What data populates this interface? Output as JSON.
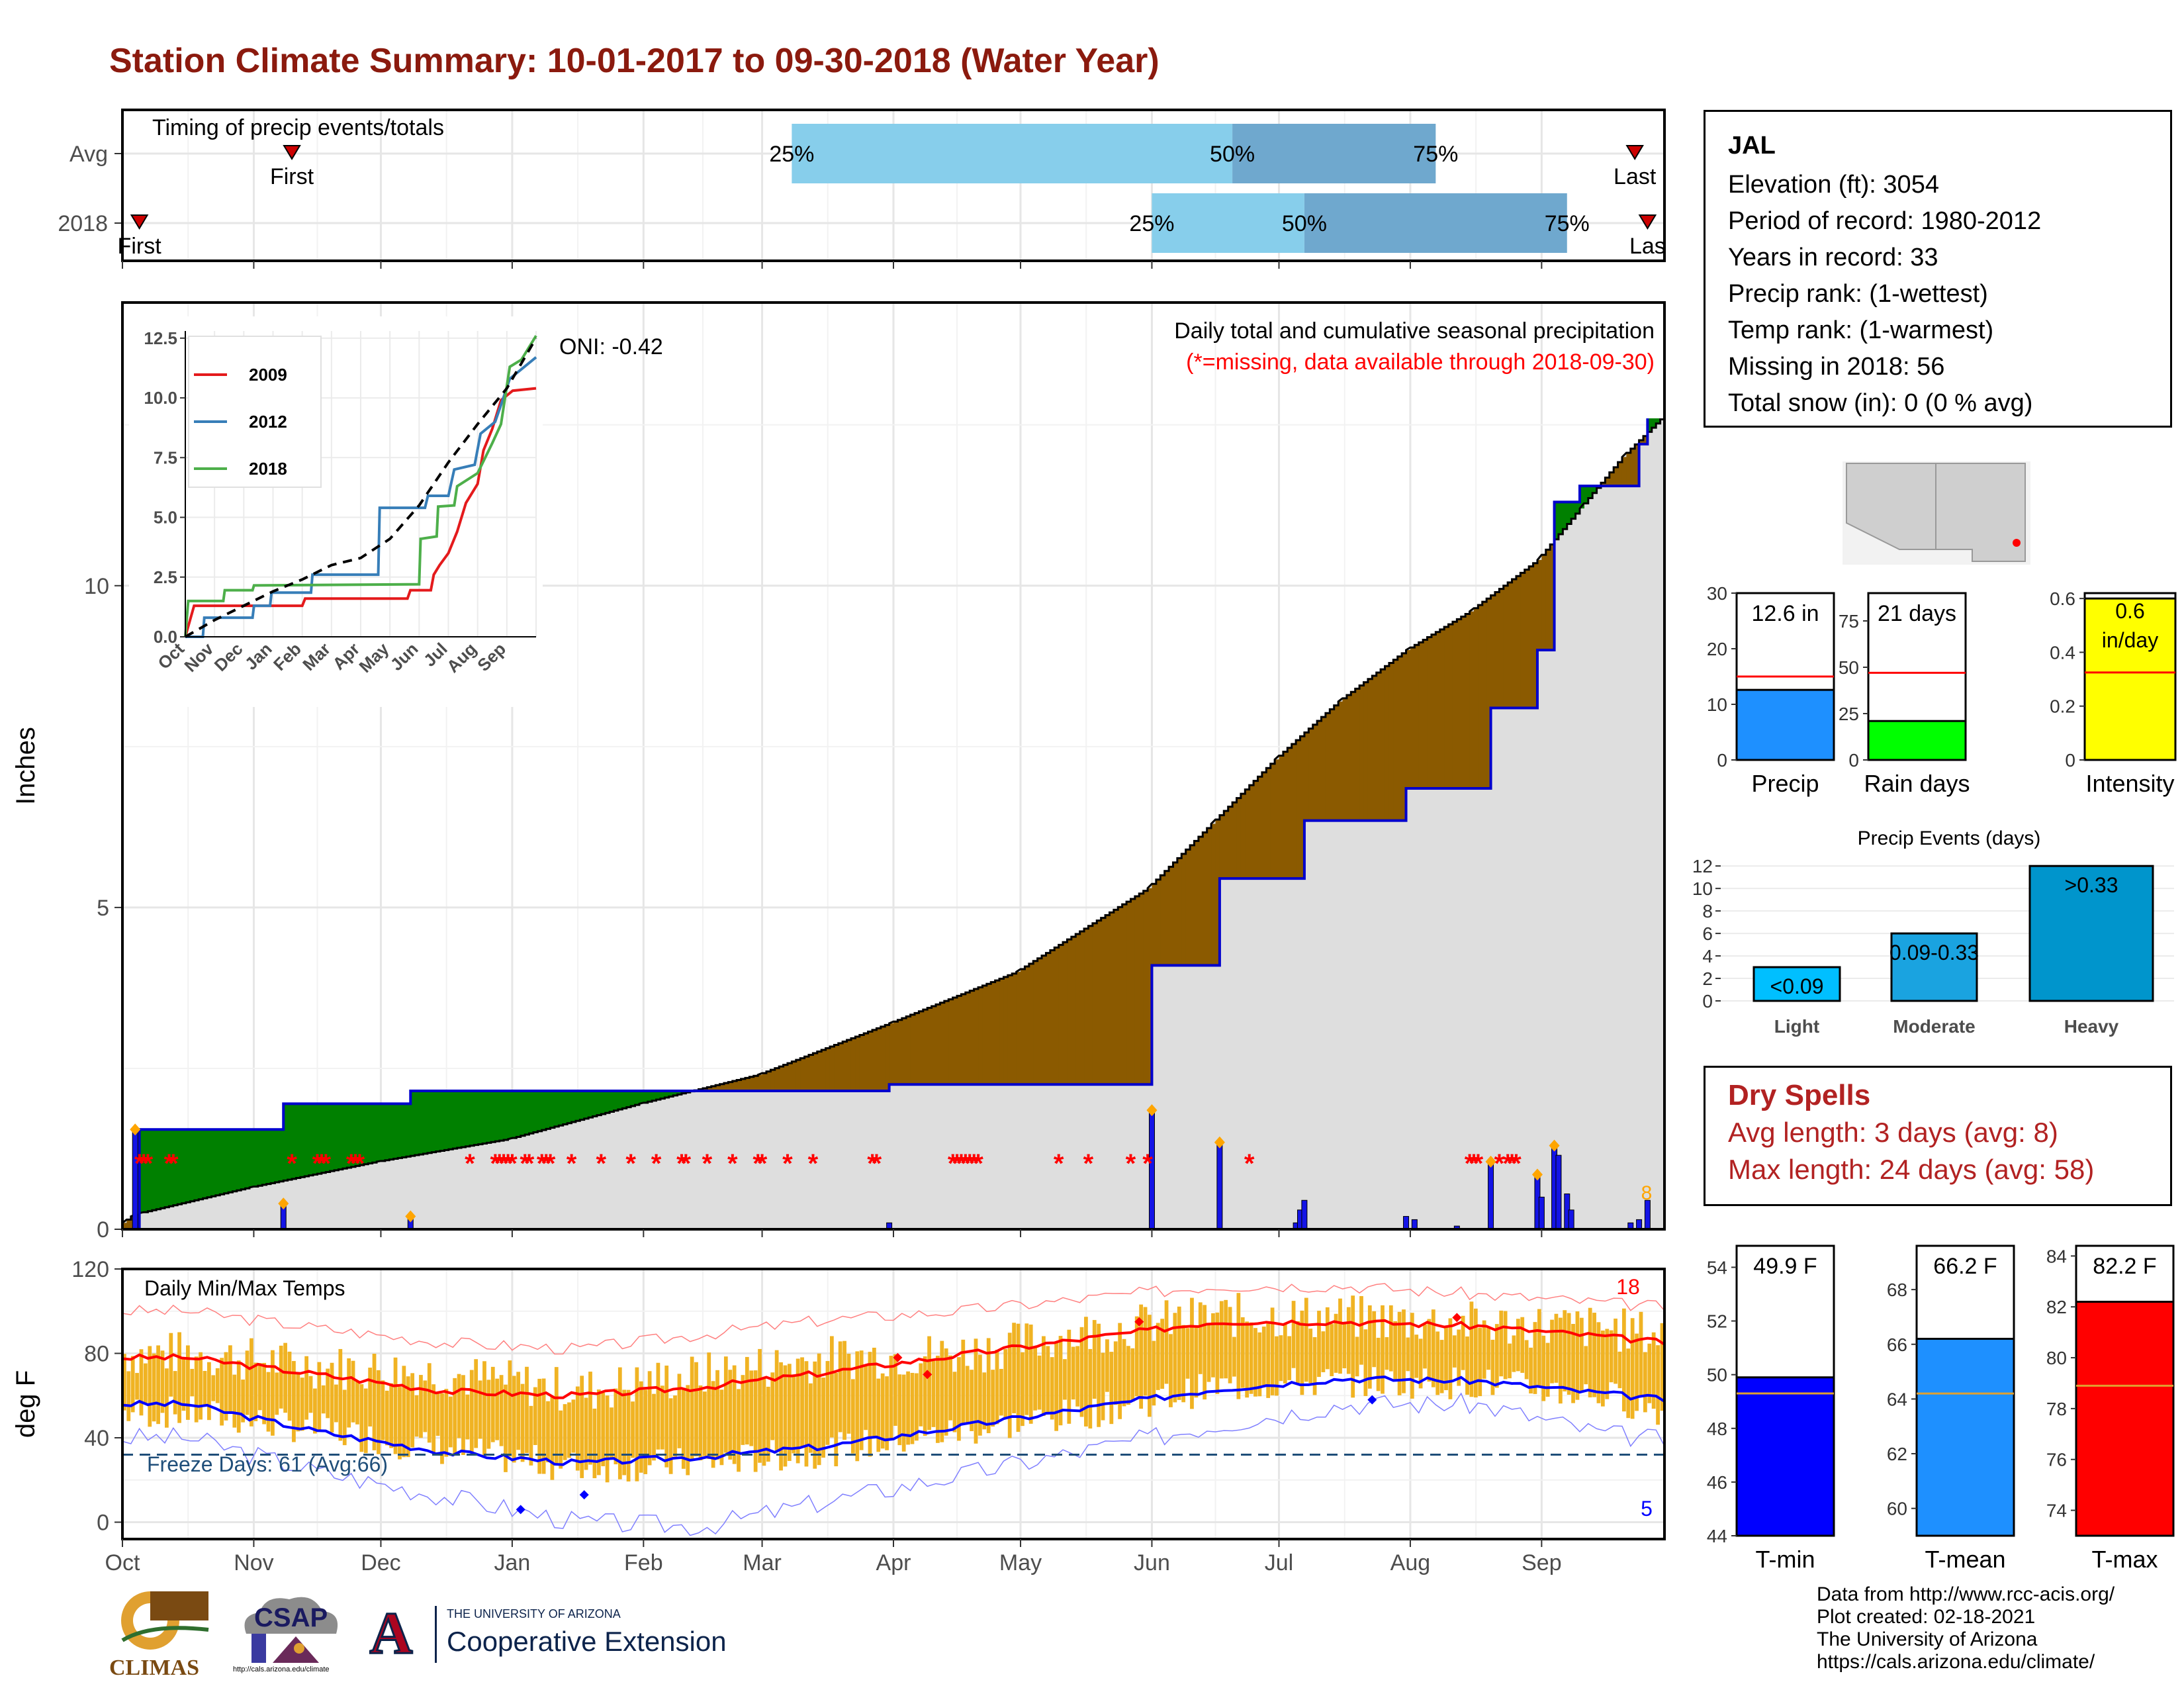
{
  "title": "Station Climate Summary: 10-01-2017 to 09-30-2018 (Water Year)",
  "station": {
    "name": "JAL",
    "elevation": "Elevation (ft): 3054",
    "period": "Period of record: 1980-2012",
    "years": "Years in record: 33",
    "precip_rank": "Precip rank:  (1-wettest)",
    "temp_rank": "Temp rank:  (1-warmest)",
    "missing": "Missing in 2018: 56",
    "snow": "Total snow (in): 0 (0 % avg)"
  },
  "dry_spells": {
    "title": "Dry Spells",
    "avg": "Avg length: 3 days (avg: 8)",
    "max": "Max length: 24 days (avg: 58)"
  },
  "footer": {
    "line1": "Data from http://www.rcc-acis.org/",
    "line2": "Plot created: 02-18-2021",
    "line3": "The University of Arizona",
    "line4": "https://cals.arizona.edu/climate/"
  },
  "logos": {
    "climas": "CLIMAS",
    "csap": "CSAP",
    "csap_url": "http://cals.arizona.edu/climate",
    "ua_small": "THE UNIVERSITY OF ARIZONA",
    "ua_big": "Cooperative Extension",
    "ua_letter": "A"
  },
  "colors": {
    "title": "#8B1A0E",
    "green": "#008000",
    "brown": "#8B5A00",
    "gray_fill": "#DEDEDE",
    "avg_line": "#0000CD",
    "bar_blue": "#1414E6",
    "missing": "#FF0000",
    "orange": "#FFA500",
    "tmax": "#FF0000",
    "tmin": "#0000FF",
    "range": "#F0B323",
    "sky": "#87CEEB",
    "steel": "#6FA8CE"
  },
  "chart_data": [
    {
      "id": "timing",
      "type": "bar",
      "title": "Timing of precip events/totals",
      "categories": [
        "Avg",
        "2018"
      ],
      "x_months": [
        "Oct",
        "Nov",
        "Dec",
        "Jan",
        "Feb",
        "Mar",
        "Apr",
        "May",
        "Jun",
        "Jul",
        "Aug",
        "Sep"
      ],
      "rows": [
        {
          "name": "Avg",
          "first": "2017-11-10",
          "p25": "2018-03-08",
          "p50": "2018-06-20",
          "p75": "2018-08-07",
          "last": "2018-09-23",
          "labels": {
            "first": "First",
            "p25": "25%",
            "p50": "50%",
            "p75": "75%",
            "last": "Last"
          }
        },
        {
          "name": "2018",
          "first": "2017-10-05",
          "p25": "2018-06-01",
          "p50": "2018-07-07",
          "p75": "2018-09-07",
          "last": "2018-09-26",
          "labels": {
            "first": "First",
            "p25": "25%",
            "p50": "50%",
            "p75": "75%",
            "last": "Las"
          }
        }
      ]
    },
    {
      "id": "precip",
      "type": "area",
      "title": "Daily total and cumulative seasonal precipitation",
      "subtitle": "(*=missing, data available through 2018-09-30)",
      "ylabel": "Inches",
      "ylim": [
        0,
        14.4
      ],
      "yticks": [
        0,
        5,
        10
      ],
      "oni": "ONI: -0.42",
      "avg_cumulative": [
        {
          "d": "2017-10-01",
          "v": 0.1
        },
        {
          "d": "2017-10-03",
          "v": 0.2
        },
        {
          "d": "2017-10-05",
          "v": 0.25
        },
        {
          "d": "2017-10-31",
          "v": 0.65
        },
        {
          "d": "2017-11-30",
          "v": 1.05
        },
        {
          "d": "2017-12-31",
          "v": 1.4
        },
        {
          "d": "2018-01-31",
          "v": 1.95
        },
        {
          "d": "2018-02-28",
          "v": 2.4
        },
        {
          "d": "2018-03-31",
          "v": 3.2
        },
        {
          "d": "2018-04-30",
          "v": 4.0
        },
        {
          "d": "2018-05-31",
          "v": 5.3
        },
        {
          "d": "2018-06-15",
          "v": 6.3
        },
        {
          "d": "2018-06-30",
          "v": 7.3
        },
        {
          "d": "2018-07-15",
          "v": 8.2
        },
        {
          "d": "2018-07-31",
          "v": 9.0
        },
        {
          "d": "2018-08-15",
          "v": 9.6
        },
        {
          "d": "2018-08-31",
          "v": 10.4
        },
        {
          "d": "2018-09-10",
          "v": 11.2
        },
        {
          "d": "2018-09-20",
          "v": 12.0
        },
        {
          "d": "2018-09-30",
          "v": 12.65
        }
      ],
      "cumulative_2018": [
        {
          "d": "2017-10-01",
          "v": 0.0
        },
        {
          "d": "2017-10-05",
          "v": 1.55
        },
        {
          "d": "2017-11-08",
          "v": 1.95
        },
        {
          "d": "2017-12-08",
          "v": 2.15
        },
        {
          "d": "2018-03-31",
          "v": 2.25
        },
        {
          "d": "2018-06-01",
          "v": 4.1
        },
        {
          "d": "2018-06-17",
          "v": 5.45
        },
        {
          "d": "2018-07-07",
          "v": 6.35
        },
        {
          "d": "2018-07-31",
          "v": 6.85
        },
        {
          "d": "2018-08-20",
          "v": 8.1
        },
        {
          "d": "2018-08-31",
          "v": 9.0
        },
        {
          "d": "2018-09-04",
          "v": 11.3
        },
        {
          "d": "2018-09-10",
          "v": 11.55
        },
        {
          "d": "2018-09-24",
          "v": 12.2
        },
        {
          "d": "2018-09-26",
          "v": 12.6
        }
      ],
      "daily": [
        {
          "d": "2017-10-04",
          "v": 1.55,
          "max": true
        },
        {
          "d": "2017-11-08",
          "v": 0.4,
          "max": true
        },
        {
          "d": "2017-12-08",
          "v": 0.2,
          "max": true
        },
        {
          "d": "2018-03-31",
          "v": 0.1
        },
        {
          "d": "2018-06-01",
          "v": 1.85,
          "max": true
        },
        {
          "d": "2018-06-17",
          "v": 1.35,
          "max": true
        },
        {
          "d": "2018-07-05",
          "v": 0.1
        },
        {
          "d": "2018-07-06",
          "v": 0.3
        },
        {
          "d": "2018-07-07",
          "v": 0.45
        },
        {
          "d": "2018-07-31",
          "v": 0.2
        },
        {
          "d": "2018-08-02",
          "v": 0.15
        },
        {
          "d": "2018-08-12",
          "v": 0.05
        },
        {
          "d": "2018-08-20",
          "v": 1.05,
          "max": true
        },
        {
          "d": "2018-08-31",
          "v": 0.85,
          "max": true
        },
        {
          "d": "2018-09-01",
          "v": 0.5
        },
        {
          "d": "2018-09-04",
          "v": 1.3,
          "max": true
        },
        {
          "d": "2018-09-05",
          "v": 1.15
        },
        {
          "d": "2018-09-07",
          "v": 0.55
        },
        {
          "d": "2018-09-08",
          "v": 0.3
        },
        {
          "d": "2018-09-22",
          "v": 0.1
        },
        {
          "d": "2018-09-24",
          "v": 0.15
        },
        {
          "d": "2018-09-26",
          "v": 0.45
        }
      ],
      "missing_dates": [
        "2017-10-05",
        "2017-10-06",
        "2017-10-07",
        "2017-10-12",
        "2017-10-13",
        "2017-11-10",
        "2017-11-16",
        "2017-11-17",
        "2017-11-18",
        "2017-11-24",
        "2017-11-25",
        "2017-11-26",
        "2017-12-22",
        "2017-12-28",
        "2017-12-29",
        "2017-12-30",
        "2017-12-31",
        "2018-01-01",
        "2018-01-04",
        "2018-01-05",
        "2018-01-08",
        "2018-01-09",
        "2018-01-10",
        "2018-01-15",
        "2018-01-22",
        "2018-01-29",
        "2018-02-04",
        "2018-02-10",
        "2018-02-11",
        "2018-02-16",
        "2018-02-22",
        "2018-02-28",
        "2018-03-01",
        "2018-03-07",
        "2018-03-13",
        "2018-03-27",
        "2018-03-28",
        "2018-04-15",
        "2018-04-16",
        "2018-04-17",
        "2018-04-18",
        "2018-04-19",
        "2018-04-20",
        "2018-04-21",
        "2018-05-10",
        "2018-05-17",
        "2018-05-27",
        "2018-05-31",
        "2018-06-24",
        "2018-08-15",
        "2018-08-16",
        "2018-08-17",
        "2018-08-22",
        "2018-08-24",
        "2018-08-25",
        "2018-08-26"
      ],
      "corner_label": "8"
    },
    {
      "id": "inset",
      "type": "line",
      "yticks": [
        0.0,
        2.5,
        5.0,
        7.5,
        10.0,
        12.5
      ],
      "ylim": [
        0,
        12.8
      ],
      "x_months": [
        "Oct",
        "Nov",
        "Dec",
        "Jan",
        "Feb",
        "Mar",
        "Apr",
        "May",
        "Jun",
        "Jul",
        "Aug",
        "Sep"
      ],
      "series": [
        {
          "name": "2009",
          "color": "#E41A1C",
          "points": [
            [
              0,
              0.0
            ],
            [
              0.3,
              1.3
            ],
            [
              4.0,
              1.3
            ],
            [
              4.1,
              1.6
            ],
            [
              7.6,
              1.6
            ],
            [
              7.7,
              1.95
            ],
            [
              8.4,
              1.95
            ],
            [
              8.5,
              2.6
            ],
            [
              8.7,
              3.0
            ],
            [
              9.0,
              3.5
            ],
            [
              9.3,
              4.4
            ],
            [
              9.6,
              5.6
            ],
            [
              10.0,
              6.4
            ],
            [
              10.2,
              7.8
            ],
            [
              10.5,
              8.7
            ],
            [
              10.8,
              9.9
            ],
            [
              11.2,
              10.3
            ],
            [
              12.0,
              10.4
            ]
          ]
        },
        {
          "name": "2012",
          "color": "#377EB8",
          "points": [
            [
              0,
              0.0
            ],
            [
              0.6,
              0.0
            ],
            [
              0.65,
              0.8
            ],
            [
              2.3,
              0.8
            ],
            [
              2.35,
              1.3
            ],
            [
              2.9,
              1.3
            ],
            [
              2.95,
              1.85
            ],
            [
              4.3,
              1.85
            ],
            [
              4.35,
              2.6
            ],
            [
              6.6,
              2.6
            ],
            [
              6.65,
              5.4
            ],
            [
              8.2,
              5.4
            ],
            [
              8.3,
              5.9
            ],
            [
              9.0,
              5.9
            ],
            [
              9.2,
              7.0
            ],
            [
              9.9,
              7.2
            ],
            [
              10.1,
              8.5
            ],
            [
              10.6,
              9.0
            ],
            [
              10.8,
              9.7
            ],
            [
              11.1,
              10.8
            ],
            [
              12.0,
              11.7
            ]
          ]
        },
        {
          "name": "2018",
          "color": "#4DAF4A",
          "points": [
            [
              0,
              0.0
            ],
            [
              0.1,
              1.5
            ],
            [
              1.3,
              1.5
            ],
            [
              1.35,
              1.95
            ],
            [
              2.3,
              1.95
            ],
            [
              2.35,
              2.15
            ],
            [
              8.0,
              2.2
            ],
            [
              8.05,
              4.1
            ],
            [
              8.6,
              4.2
            ],
            [
              8.65,
              5.45
            ],
            [
              9.2,
              5.5
            ],
            [
              9.3,
              6.3
            ],
            [
              10.0,
              6.85
            ],
            [
              10.5,
              8.1
            ],
            [
              10.8,
              8.9
            ],
            [
              11.1,
              11.3
            ],
            [
              11.5,
              11.6
            ],
            [
              12.0,
              12.6
            ]
          ]
        },
        {
          "name": "avg",
          "color": "#000000",
          "dashed": true,
          "points": [
            [
              0,
              0.0
            ],
            [
              1,
              0.7
            ],
            [
              2,
              1.3
            ],
            [
              3,
              1.9
            ],
            [
              4,
              2.4
            ],
            [
              5,
              3.0
            ],
            [
              6,
              3.3
            ],
            [
              7,
              4.1
            ],
            [
              8,
              5.5
            ],
            [
              9,
              7.3
            ],
            [
              10,
              8.9
            ],
            [
              11,
              10.4
            ],
            [
              12,
              12.5
            ]
          ]
        }
      ]
    },
    {
      "id": "temps",
      "type": "line",
      "title": "Daily Min/Max Temps",
      "ylabel": "deg F",
      "ylim": [
        -8,
        120
      ],
      "yticks": [
        0,
        40,
        80,
        120
      ],
      "freeze_label": "Freeze Days: 61 (Avg:66)",
      "freeze_line": 32,
      "record_max_count": "18",
      "record_min_count": "5",
      "avg_max_monthly": [
        78,
        70,
        62,
        60,
        64,
        71,
        79,
        87,
        95,
        95,
        93,
        88,
        82
      ],
      "avg_min_monthly": [
        56,
        43,
        33,
        28,
        31,
        36,
        45,
        54,
        63,
        68,
        67,
        61,
        55
      ],
      "record_max_monthly": [
        100,
        92,
        85,
        82,
        89,
        96,
        100,
        106,
        112,
        112,
        108,
        104,
        100
      ],
      "record_min_monthly": [
        40,
        24,
        12,
        0,
        -2,
        10,
        22,
        34,
        46,
        56,
        56,
        42,
        36
      ],
      "obs_max_monthly": [
        80,
        74,
        70,
        62,
        70,
        78,
        80,
        90,
        98,
        97,
        94,
        92,
        84
      ],
      "obs_min_monthly": [
        52,
        44,
        34,
        26,
        28,
        34,
        43,
        52,
        64,
        67,
        66,
        60,
        44
      ]
    },
    {
      "id": "bottom_x",
      "type": "table",
      "months": [
        "Oct",
        "Nov",
        "Dec",
        "Jan",
        "Feb",
        "Mar",
        "Apr",
        "May",
        "Jun",
        "Jul",
        "Aug",
        "Sep"
      ]
    },
    {
      "id": "mini_precip",
      "type": "bar",
      "bars": [
        {
          "name": "Precip",
          "value": 12.6,
          "avg": 15.0,
          "label": "12.6 in",
          "color": "#1E90FF",
          "ylim": [
            0,
            30
          ],
          "yticks": [
            0,
            10,
            20,
            30
          ]
        },
        {
          "name": "Rain days",
          "value": 21,
          "avg": 47,
          "label": "21 days",
          "color": "#00FF00",
          "ylim": [
            0,
            90
          ],
          "yticks": [
            0,
            25,
            50,
            75
          ]
        },
        {
          "name": "Intensity",
          "value": 0.6,
          "avg": 0.325,
          "label": "0.6 in/day",
          "color": "#FFFF00",
          "ylim": [
            0,
            0.62
          ],
          "yticks": [
            0.0,
            0.2,
            0.4,
            0.6
          ]
        }
      ]
    },
    {
      "id": "events",
      "type": "bar",
      "title": "Precip Events (days)",
      "categories": [
        "Light",
        "Moderate",
        "Heavy"
      ],
      "values": [
        3,
        6,
        12
      ],
      "labels": [
        "<0.09",
        "0.09-0.33",
        ">0.33"
      ],
      "colors": [
        "#00BFFF",
        "#1AA3E0",
        "#0095CC"
      ],
      "ylim": [
        0,
        12.6
      ],
      "yticks": [
        0,
        2,
        4,
        6,
        8,
        10,
        12
      ]
    },
    {
      "id": "mini_temp",
      "type": "bar",
      "bars": [
        {
          "name": "T-min",
          "value": 49.9,
          "avg": 49.3,
          "label": "49.9 F",
          "color": "#0000FF",
          "ylim": [
            44,
            54.8
          ],
          "yticks": [
            44,
            46,
            48,
            50,
            52,
            54
          ]
        },
        {
          "name": "T-mean",
          "value": 66.2,
          "avg": 64.2,
          "label": "66.2 F",
          "color": "#1E90FF",
          "ylim": [
            59,
            69.6
          ],
          "yticks": [
            60,
            62,
            64,
            66,
            68
          ]
        },
        {
          "name": "T-max",
          "value": 82.2,
          "avg": 78.9,
          "label": "82.2 F",
          "color": "#FF0000",
          "ylim": [
            73,
            84.4
          ],
          "yticks": [
            74,
            76,
            78,
            80,
            82,
            84
          ]
        }
      ]
    }
  ]
}
